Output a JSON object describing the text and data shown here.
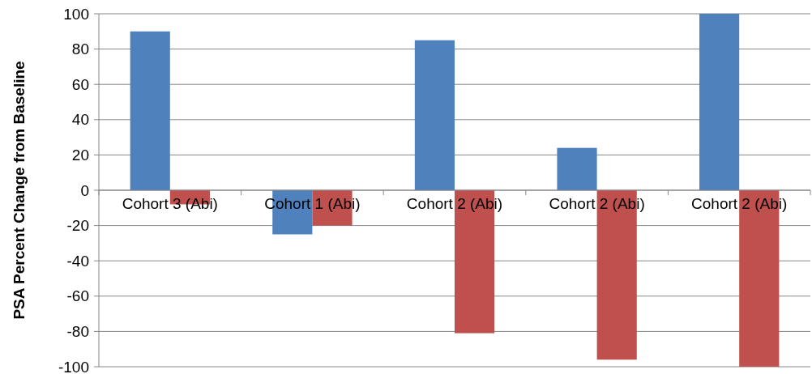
{
  "chart_data": {
    "type": "bar",
    "ylabel": "PSA Percent Change from Baseline",
    "categories": [
      "Cohort 3 (Abi)",
      "Cohort 1 (Abi)",
      "Cohort 2 (Abi)",
      "Cohort 2 (Abi)",
      "Cohort 2 (Abi)"
    ],
    "series": [
      {
        "color": "#4f81bd",
        "values": [
          90,
          -25,
          85,
          24,
          100
        ]
      },
      {
        "color": "#c0504d",
        "values": [
          -8,
          -20,
          -81,
          -96,
          -100
        ]
      }
    ],
    "ylim": [
      -100,
      100
    ],
    "yticks": [
      -100,
      -80,
      -60,
      -40,
      -20,
      0,
      20,
      40,
      60,
      80,
      100
    ],
    "grid": "y"
  }
}
